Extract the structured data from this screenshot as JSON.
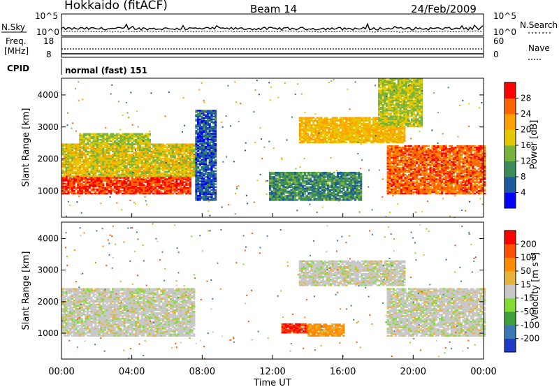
{
  "header": {
    "station": "Hokkaido (fitACF)",
    "beam": "Beam 14",
    "date": "24/Feb/2009"
  },
  "noise_panel": {
    "left_label": "N.Sky",
    "right_label": "N.Search",
    "left_ticks": [
      "10^5",
      "10^0"
    ],
    "right_ticks": [
      "10^5",
      "10^0"
    ]
  },
  "freq_panel": {
    "left_label_line1": "Freq.",
    "left_label_line2": "[MHz]",
    "right_label": "Nave",
    "left_ticks": [
      "18",
      "8"
    ],
    "right_ticks": [
      "60",
      "0"
    ]
  },
  "cpid": {
    "label": "CPID",
    "value": "normal (fast) 151"
  },
  "power_panel": {
    "ylabel": "Slant Range [km]",
    "yticks": [
      "4000",
      "3000",
      "2000",
      "1000"
    ],
    "colorbar_label": "Power [dB]",
    "colorbar_ticks": [
      "28",
      "24",
      "20",
      "16",
      "12",
      "8",
      "4"
    ],
    "colors": [
      "#0000ff",
      "#1e5aa0",
      "#3c8c5a",
      "#78b43c",
      "#e6c800",
      "#ffa000",
      "#ff6400",
      "#ff0000"
    ]
  },
  "velocity_panel": {
    "ylabel": "Slant Range [km]",
    "yticks": [
      "4000",
      "3000",
      "2000",
      "1000"
    ],
    "colorbar_label": "Velocity [m s",
    "colorbar_unit_sup": "-1",
    "colorbar_label_close": "]",
    "colorbar_ticks": [
      "200",
      "100",
      "50",
      "15",
      "-15",
      "-50",
      "-100",
      "-200"
    ],
    "colors": [
      "#1e3cc8",
      "#3c78b4",
      "#3ca03c",
      "#82dc32",
      "#c8c8c8",
      "#e6b43c",
      "#ff8c00",
      "#ff5000",
      "#ff0000"
    ]
  },
  "xaxis": {
    "label": "Time UT",
    "ticks": [
      "00:00",
      "04:00",
      "08:00",
      "12:00",
      "16:00",
      "20:00",
      "00:00"
    ]
  },
  "chart_data": [
    {
      "type": "heatmap",
      "name": "Power",
      "xlabel": "Time UT",
      "ylabel": "Slant Range [km]",
      "xlim": [
        0,
        24
      ],
      "ylim": [
        180,
        4500
      ],
      "colorbar": {
        "label": "Power [dB]",
        "range": [
          0,
          32
        ],
        "ticks": [
          4,
          8,
          12,
          16,
          20,
          24,
          28
        ]
      },
      "regions": [
        {
          "t0": 0.0,
          "t1": 7.3,
          "r0": 900,
          "r1": 1450,
          "level": 28
        },
        {
          "t0": 0.0,
          "t1": 7.5,
          "r0": 1450,
          "r1": 2450,
          "level": 18
        },
        {
          "t0": 1.0,
          "t1": 5.0,
          "r0": 2450,
          "r1": 2800,
          "level": 16
        },
        {
          "t0": 7.6,
          "t1": 8.8,
          "r0": 700,
          "r1": 3500,
          "level": 6
        },
        {
          "t0": 11.8,
          "t1": 17.0,
          "r0": 700,
          "r1": 1600,
          "level": 10
        },
        {
          "t0": 13.5,
          "t1": 19.5,
          "r0": 2500,
          "r1": 3300,
          "level": 20
        },
        {
          "t0": 18.5,
          "t1": 24.0,
          "r0": 900,
          "r1": 2400,
          "level": 26
        },
        {
          "t0": 18.0,
          "t1": 20.5,
          "r0": 3000,
          "r1": 4500,
          "level": 16
        }
      ]
    },
    {
      "type": "heatmap",
      "name": "Velocity",
      "xlabel": "Time UT",
      "ylabel": "Slant Range [km]",
      "xlim": [
        0,
        24
      ],
      "ylim": [
        180,
        4500
      ],
      "colorbar": {
        "label": "Velocity [m s-1]",
        "range": [
          -250,
          250
        ],
        "ticks": [
          -200,
          -100,
          -50,
          -15,
          15,
          50,
          100,
          200
        ]
      },
      "regions": [
        {
          "t0": 0.0,
          "t1": 7.5,
          "r0": 900,
          "r1": 2400,
          "level": 0
        },
        {
          "t0": 12.5,
          "t1": 14.0,
          "r0": 1000,
          "r1": 1300,
          "level": 200
        },
        {
          "t0": 14.0,
          "t1": 16.0,
          "r0": 900,
          "r1": 1300,
          "level": 60
        },
        {
          "t0": 13.5,
          "t1": 19.5,
          "r0": 2500,
          "r1": 3300,
          "level": 0
        },
        {
          "t0": 18.5,
          "t1": 24.0,
          "r0": 900,
          "r1": 2400,
          "level": 0
        }
      ]
    }
  ]
}
